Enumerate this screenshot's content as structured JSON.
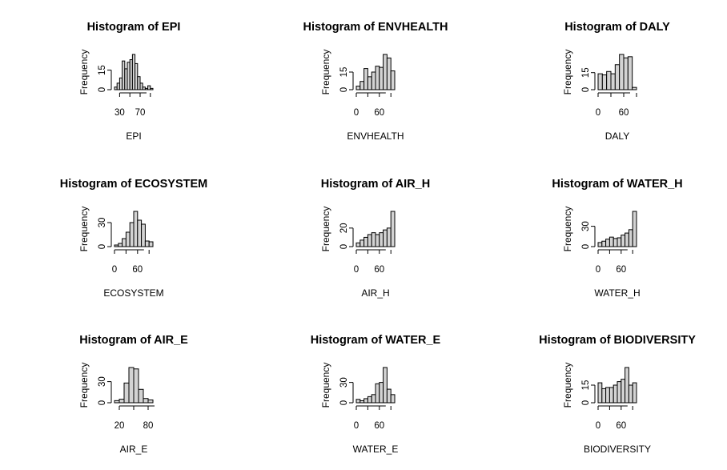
{
  "chart_data": [
    {
      "type": "bar",
      "title": "Histogram of EPI",
      "xlabel": "EPI",
      "ylabel": "Frequency",
      "bin_edges": [
        20,
        25,
        30,
        35,
        40,
        45,
        50,
        55,
        60,
        65,
        70,
        75,
        80,
        85,
        90,
        95
      ],
      "values": [
        2,
        5,
        9,
        22,
        16,
        21,
        23,
        27,
        20,
        10,
        5,
        2,
        1,
        3,
        1
      ],
      "xticks": [
        30,
        70
      ],
      "yticks": [
        0,
        15
      ],
      "ymax": 27
    },
    {
      "type": "bar",
      "title": "Histogram of ENVHEALTH",
      "xlabel": "ENVHEALTH",
      "ylabel": "Frequency",
      "bin_edges": [
        0,
        10,
        20,
        30,
        40,
        50,
        60,
        70,
        80,
        90,
        100
      ],
      "values": [
        3,
        7,
        18,
        11,
        15,
        20,
        19,
        30,
        27,
        16
      ],
      "xticks": [
        0,
        60
      ],
      "yticks": [
        0,
        15
      ],
      "ymax": 30
    },
    {
      "type": "bar",
      "title": "Histogram of DALY",
      "xlabel": "DALY",
      "ylabel": "Frequency",
      "bin_edges": [
        0,
        10,
        20,
        30,
        40,
        50,
        60,
        70,
        80,
        90
      ],
      "values": [
        14,
        13,
        16,
        14,
        22,
        31,
        28,
        29,
        2
      ],
      "xticks": [
        0,
        60
      ],
      "yticks": [
        0,
        15
      ],
      "ymax": 31
    },
    {
      "type": "bar",
      "title": "Histogram of ECOSYSTEM",
      "xlabel": "ECOSYSTEM",
      "ylabel": "Frequency",
      "bin_edges": [
        0,
        10,
        20,
        30,
        40,
        50,
        60,
        70,
        80,
        90,
        100
      ],
      "values": [
        2,
        4,
        10,
        18,
        30,
        44,
        33,
        28,
        7,
        6
      ],
      "xticks": [
        0,
        60
      ],
      "yticks": [
        0,
        30
      ],
      "ymax": 44
    },
    {
      "type": "bar",
      "title": "Histogram of AIR_H",
      "xlabel": "AIR_H",
      "ylabel": "Frequency",
      "bin_edges": [
        0,
        10,
        20,
        30,
        40,
        50,
        60,
        70,
        80,
        90,
        100
      ],
      "values": [
        4,
        7,
        10,
        13,
        15,
        13,
        15,
        18,
        20,
        38
      ],
      "xticks": [
        0,
        60
      ],
      "yticks": [
        0,
        20
      ],
      "ymax": 38
    },
    {
      "type": "bar",
      "title": "Histogram of WATER_H",
      "xlabel": "WATER_H",
      "ylabel": "Frequency",
      "bin_edges": [
        0,
        10,
        20,
        30,
        40,
        50,
        60,
        70,
        80,
        90,
        100
      ],
      "values": [
        6,
        8,
        11,
        14,
        12,
        13,
        17,
        20,
        25,
        52
      ],
      "xticks": [
        0,
        60
      ],
      "yticks": [
        0,
        30
      ],
      "ymax": 52
    },
    {
      "type": "bar",
      "title": "Histogram of AIR_E",
      "xlabel": "AIR_E",
      "ylabel": "Frequency",
      "bin_edges": [
        10,
        20,
        30,
        40,
        50,
        60,
        70,
        80,
        90
      ],
      "values": [
        3,
        5,
        28,
        50,
        48,
        19,
        6,
        4
      ],
      "xticks": [
        20,
        80
      ],
      "yticks": [
        0,
        30
      ],
      "ymax": 50
    },
    {
      "type": "bar",
      "title": "Histogram of WATER_E",
      "xlabel": "WATER_E",
      "ylabel": "Frequency",
      "bin_edges": [
        0,
        10,
        20,
        30,
        40,
        50,
        60,
        70,
        80,
        90,
        100
      ],
      "values": [
        5,
        3,
        6,
        9,
        12,
        28,
        30,
        52,
        20,
        12
      ],
      "xticks": [
        0,
        60
      ],
      "yticks": [
        0,
        30
      ],
      "ymax": 52
    },
    {
      "type": "bar",
      "title": "Histogram of BIODIVERSITY",
      "xlabel": "BIODIVERSITY",
      "ylabel": "Frequency",
      "bin_edges": [
        0,
        10,
        20,
        30,
        40,
        50,
        60,
        70,
        80,
        90,
        100
      ],
      "values": [
        17,
        12,
        13,
        13,
        15,
        18,
        20,
        30,
        15,
        17
      ],
      "xticks": [
        0,
        60
      ],
      "yticks": [
        0,
        15
      ],
      "ymax": 30
    }
  ]
}
